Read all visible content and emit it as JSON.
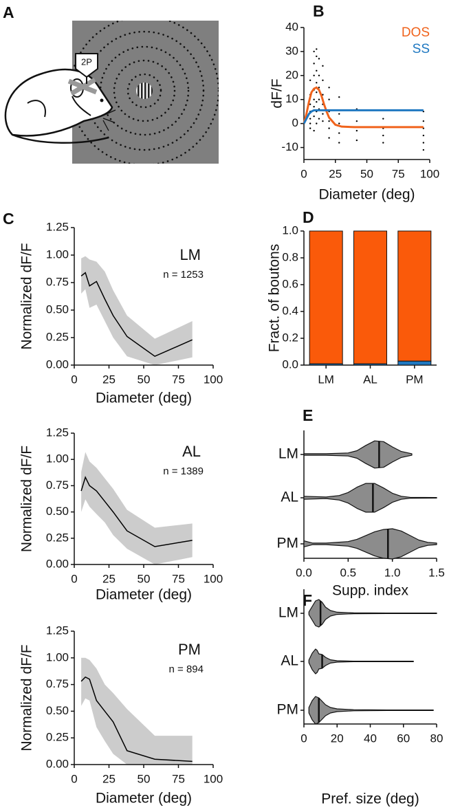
{
  "illustration": {
    "panel": "A",
    "probe_label": "2P"
  },
  "chart_data": [
    {
      "type": "line",
      "panel": "B",
      "xlabel": "Diameter (deg)",
      "ylabel": "dF/F",
      "xlim": [
        0,
        100
      ],
      "xticks": [
        0,
        25,
        50,
        75,
        100
      ],
      "ylim": [
        -15,
        40
      ],
      "yticks": [
        -10,
        0,
        10,
        20,
        30,
        40
      ],
      "x": [
        0,
        2,
        4,
        6,
        8,
        10,
        12,
        14,
        16,
        18,
        20,
        25,
        30,
        40,
        60,
        95
      ],
      "series": [
        {
          "name": "DOS",
          "color": "#f0631c",
          "values": [
            0,
            4,
            9,
            13,
            14.5,
            15,
            14,
            11.5,
            8,
            5,
            2.5,
            -0.5,
            -1.3,
            -1.5,
            -1.5,
            -1.5
          ]
        },
        {
          "name": "SS",
          "color": "#1f78c1",
          "values": [
            0,
            2,
            4,
            5,
            5.5,
            5.5,
            5.5,
            5.5,
            5.5,
            5.5,
            5.5,
            5.5,
            5.5,
            5.5,
            5.5,
            5.5
          ]
        }
      ],
      "points": {
        "color": "#000000",
        "x": [
          5,
          5,
          5,
          5,
          5,
          5,
          5,
          8,
          8,
          8,
          8,
          8,
          8,
          8,
          8,
          10,
          10,
          10,
          10,
          10,
          10,
          10,
          10,
          12,
          12,
          12,
          12,
          12,
          12,
          15,
          15,
          15,
          15,
          15,
          15,
          20,
          20,
          20,
          20,
          20,
          20,
          28,
          28,
          28,
          28,
          28,
          42,
          42,
          42,
          42,
          63,
          63,
          63,
          63,
          95,
          95,
          95,
          95,
          95,
          95
        ],
        "y": [
          2,
          5,
          8,
          12,
          18,
          -2,
          0,
          3,
          7,
          10,
          14,
          20,
          25,
          30,
          -3,
          0,
          5,
          9,
          13,
          17,
          22,
          28,
          31,
          2,
          6,
          10,
          15,
          20,
          27,
          1,
          4,
          8,
          12,
          18,
          24,
          -6,
          -2,
          1,
          5,
          10,
          15,
          -8,
          -4,
          0,
          4,
          11,
          -7,
          -3,
          1,
          6,
          -8,
          -5,
          -2,
          2,
          -11,
          -8,
          -5,
          -2,
          1,
          5
        ]
      }
    },
    {
      "type": "line",
      "panel": "C",
      "label": "LM",
      "n_label": "n = 1253",
      "xlabel": "Diameter (deg)",
      "ylabel": "Normalized dF/F",
      "xlim": [
        0,
        100
      ],
      "xticks": [
        0,
        25,
        50,
        75,
        100
      ],
      "ylim": [
        0,
        1.25
      ],
      "yticks": [
        {
          "value": 0,
          "label": "0.00"
        },
        0.25,
        {
          "value": 0.5,
          "label": "0.50"
        },
        0.75,
        {
          "value": 1,
          "label": "1.00"
        },
        1.25
      ],
      "x": [
        5,
        8,
        11,
        16,
        22,
        28,
        38,
        58,
        85
      ],
      "series": [
        {
          "color": "#000000",
          "band_color": "#cccccc",
          "values": [
            0.81,
            0.84,
            0.72,
            0.76,
            0.6,
            0.45,
            0.26,
            0.08,
            0.23
          ],
          "band_lower": [
            0.65,
            0.69,
            0.52,
            0.55,
            0.4,
            0.25,
            0.08,
            0,
            0.07
          ],
          "band_upper": [
            0.97,
            0.99,
            0.96,
            0.94,
            0.85,
            0.68,
            0.45,
            0.24,
            0.4
          ]
        }
      ]
    },
    {
      "type": "line",
      "label": "AL",
      "n_label": "n = 1389",
      "xlabel": "Diameter (deg)",
      "ylabel": "Normalized dF/F",
      "xlim": [
        0,
        100
      ],
      "xticks": [
        0,
        25,
        50,
        75,
        100
      ],
      "ylim": [
        0,
        1.25
      ],
      "yticks": [
        {
          "value": 0,
          "label": "0.00"
        },
        0.25,
        {
          "value": 0.5,
          "label": "0.50"
        },
        0.75,
        {
          "value": 1,
          "label": "1.00"
        },
        1.25
      ],
      "x": [
        5,
        8,
        11,
        16,
        22,
        28,
        38,
        58,
        85
      ],
      "series": [
        {
          "color": "#000000",
          "band_color": "#cccccc",
          "values": [
            0.7,
            0.83,
            0.75,
            0.7,
            0.6,
            0.5,
            0.32,
            0.17,
            0.23
          ],
          "band_lower": [
            0.5,
            0.62,
            0.55,
            0.48,
            0.4,
            0.28,
            0.15,
            0,
            0.07
          ],
          "band_upper": [
            0.88,
            1.07,
            0.98,
            0.92,
            0.82,
            0.72,
            0.52,
            0.35,
            0.39
          ]
        }
      ]
    },
    {
      "type": "line",
      "label": "PM",
      "n_label": "n = 894",
      "xlabel": "Diameter (deg)",
      "ylabel": "Normalized dF/F",
      "xlim": [
        0,
        100
      ],
      "xticks": [
        0,
        25,
        50,
        75,
        100
      ],
      "ylim": [
        0,
        1.25
      ],
      "yticks": [
        {
          "value": 0,
          "label": "0.00"
        },
        0.25,
        {
          "value": 0.5,
          "label": "0.50"
        },
        0.75,
        {
          "value": 1,
          "label": "1.00"
        },
        1.25
      ],
      "x": [
        5,
        8,
        11,
        16,
        22,
        28,
        38,
        58,
        85
      ],
      "series": [
        {
          "color": "#000000",
          "band_color": "#cccccc",
          "values": [
            0.78,
            0.82,
            0.8,
            0.6,
            0.5,
            0.4,
            0.13,
            0.05,
            0.03
          ],
          "band_lower": [
            0.55,
            0.62,
            0.6,
            0.35,
            0.22,
            0.1,
            0,
            0,
            0
          ],
          "band_upper": [
            1,
            1,
            0.98,
            0.9,
            0.75,
            0.67,
            0.52,
            0.27,
            0.27
          ]
        }
      ]
    },
    {
      "type": "bar",
      "panel": "D",
      "ylabel": "Fract. of boutons",
      "categories": [
        "LM",
        "AL",
        "PM"
      ],
      "ylim": [
        0,
        1
      ],
      "yticks": [
        {
          "value": 0,
          "label": "0.0"
        },
        0.2,
        0.4,
        0.6,
        0.8,
        {
          "value": 1,
          "label": "1.0"
        }
      ],
      "series": [
        {
          "color": "#1f78c1",
          "values": [
            0.01,
            0.01,
            0.03
          ]
        },
        {
          "color": "#fa5a0a",
          "values": [
            0.99,
            0.99,
            0.97
          ]
        }
      ]
    },
    {
      "type": "violin",
      "panel": "E",
      "xlabel": "Supp. index",
      "categories": [
        "LM",
        "AL",
        "PM"
      ],
      "color": "#8c8c8c",
      "xlim": [
        0,
        1.5
      ],
      "xticks": [
        {
          "value": 0,
          "label": "0.0"
        },
        0.5,
        {
          "value": 1,
          "label": "1.0"
        },
        1.5
      ],
      "series": [
        {
          "median": 0.85,
          "x": [
            0,
            0.25,
            0.5,
            0.6,
            0.7,
            0.8,
            0.9,
            1,
            1.1,
            1.22
          ],
          "density": [
            0.05,
            0.05,
            0.1,
            0.25,
            0.6,
            0.9,
            0.85,
            0.5,
            0.2,
            0.05
          ]
        },
        {
          "median": 0.78,
          "x": [
            0,
            0.25,
            0.4,
            0.5,
            0.6,
            0.7,
            0.8,
            0.9,
            1,
            1.1,
            1.2,
            1.5
          ],
          "density": [
            0.1,
            0.05,
            0.15,
            0.35,
            0.7,
            0.95,
            0.95,
            0.65,
            0.3,
            0.1,
            0.03,
            0.02
          ]
        },
        {
          "median": 0.95,
          "x": [
            0,
            0.1,
            0.25,
            0.5,
            0.6,
            0.7,
            0.8,
            0.9,
            1,
            1.1,
            1.2,
            1.3,
            1.4,
            1.5
          ],
          "density": [
            0.2,
            0.05,
            0.05,
            0.15,
            0.3,
            0.55,
            0.8,
            0.95,
            1,
            0.85,
            0.55,
            0.25,
            0.1,
            0.05
          ]
        }
      ]
    },
    {
      "type": "violin",
      "panel": "F",
      "xlabel": "Pref. size (deg)",
      "categories": [
        "LM",
        "AL",
        "PM"
      ],
      "color": "#8c8c8c",
      "xlim": [
        0,
        80
      ],
      "xticks": [
        0,
        20,
        40,
        60,
        80
      ],
      "series": [
        {
          "median": 10,
          "x": [
            3,
            5,
            7,
            9,
            11,
            13,
            16,
            20,
            30,
            50,
            80
          ],
          "density": [
            0.1,
            0.5,
            0.9,
            1,
            0.8,
            0.45,
            0.2,
            0.08,
            0.03,
            0.02,
            0.02
          ]
        },
        {
          "median": 11,
          "x": [
            3,
            5,
            7,
            8,
            9,
            11,
            13,
            16,
            20,
            30,
            66
          ],
          "density": [
            0.1,
            0.6,
            0.9,
            0.8,
            0.55,
            0.5,
            0.3,
            0.12,
            0.05,
            0.02,
            0.02
          ]
        },
        {
          "median": 9,
          "x": [
            3,
            5,
            7,
            9,
            11,
            13,
            16,
            20,
            30,
            50,
            78
          ],
          "density": [
            0.2,
            0.7,
            1,
            0.9,
            0.65,
            0.4,
            0.2,
            0.1,
            0.04,
            0.02,
            0.02
          ]
        }
      ]
    }
  ]
}
